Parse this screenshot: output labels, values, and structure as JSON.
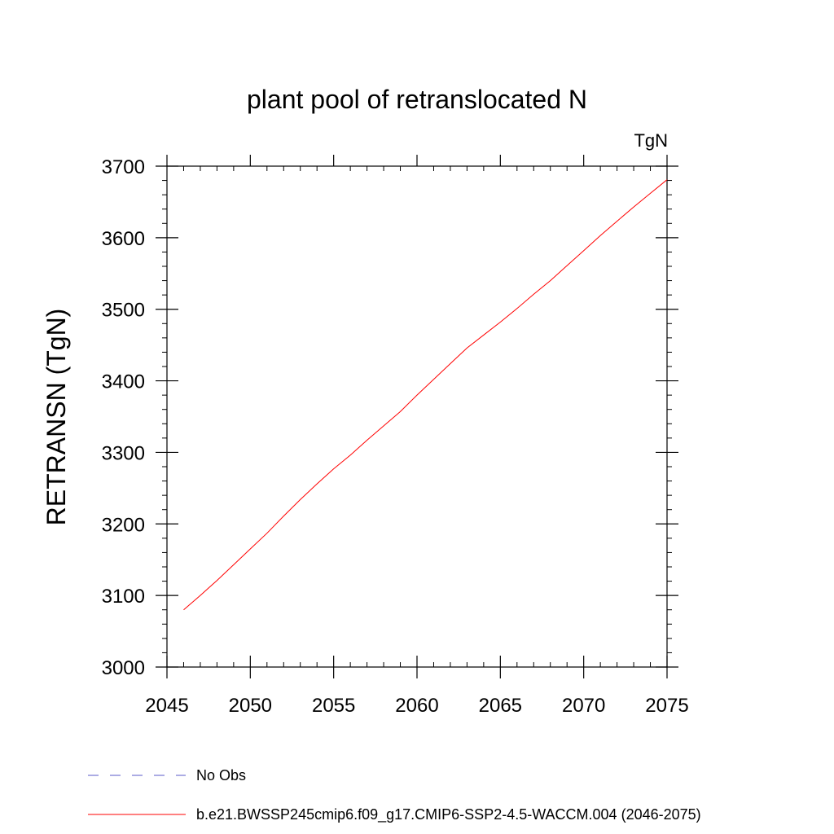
{
  "chart_data": {
    "type": "line",
    "title": "plant pool of retranslocated N",
    "units_label": "TgN",
    "ylabel": "RETRANSN  (TgN)",
    "xlabel": "",
    "xlim": [
      2045,
      2075
    ],
    "ylim": [
      3000,
      3700
    ],
    "xticks": [
      2045,
      2050,
      2055,
      2060,
      2065,
      2070,
      2075
    ],
    "xtick_labels": [
      "2045",
      "2050",
      "2055",
      "2060",
      "2065",
      "2070",
      "2075"
    ],
    "yticks": [
      3000,
      3100,
      3200,
      3300,
      3400,
      3500,
      3600,
      3700
    ],
    "ytick_labels": [
      "3000",
      "3100",
      "3200",
      "3300",
      "3400",
      "3500",
      "3600",
      "3700"
    ],
    "grid": false,
    "series": [
      {
        "name": "b.e21.BWSSP245cmip6.f09_g17.CMIP6-SSP2-4.5-WACCM.004 (2046-2075)",
        "color": "#ff0000",
        "style": "solid",
        "x": [
          2046,
          2047,
          2048,
          2049,
          2050,
          2051,
          2052,
          2053,
          2054,
          2055,
          2056,
          2057,
          2058,
          2059,
          2060,
          2061,
          2062,
          2063,
          2064,
          2065,
          2066,
          2067,
          2068,
          2069,
          2070,
          2071,
          2072,
          2073,
          2074,
          2075
        ],
        "values": [
          3080,
          3100,
          3121,
          3143,
          3165,
          3187,
          3211,
          3234,
          3256,
          3277,
          3296,
          3317,
          3337,
          3357,
          3380,
          3402,
          3424,
          3446,
          3464,
          3482,
          3501,
          3521,
          3540,
          3561,
          3582,
          3603,
          3623,
          3643,
          3662,
          3681
        ]
      }
    ],
    "legend": [
      {
        "label": "No Obs",
        "color": "#5a5ac8",
        "style": "dashed"
      },
      {
        "label": "b.e21.BWSSP245cmip6.f09_g17.CMIP6-SSP2-4.5-WACCM.004 (2046-2075)",
        "color": "#ff0000",
        "style": "solid"
      }
    ]
  }
}
